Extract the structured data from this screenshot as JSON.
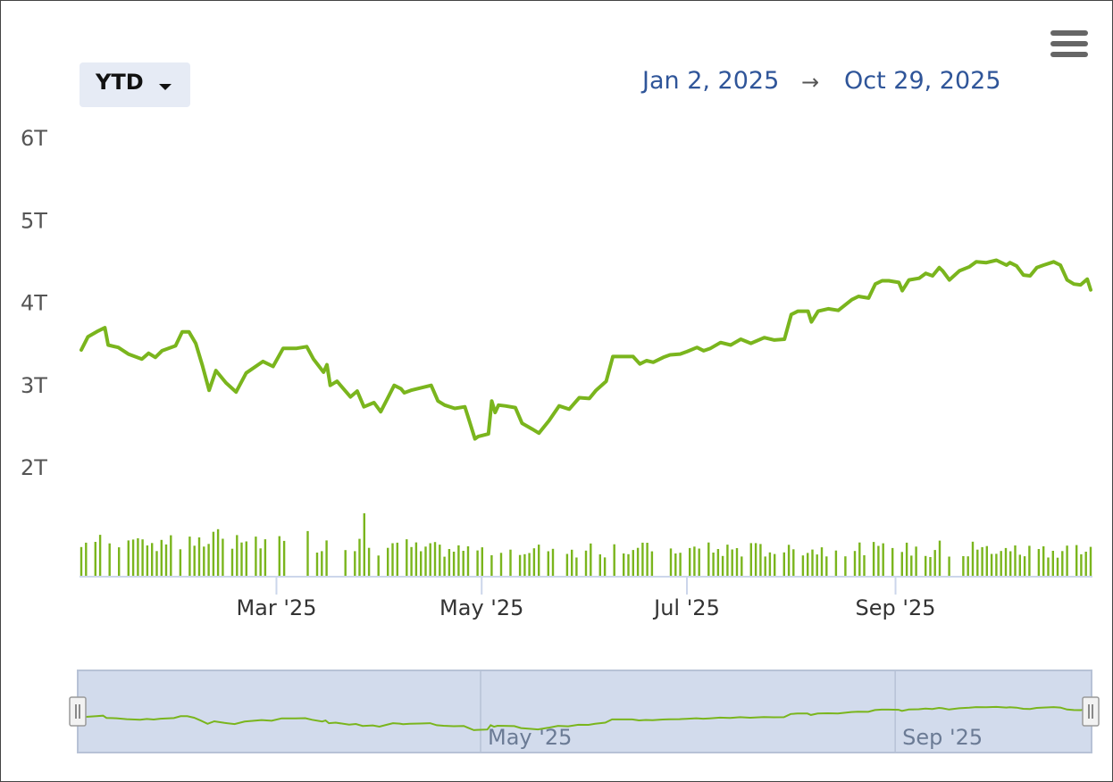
{
  "toolbar": {
    "range_label": "YTD",
    "date_from": "Jan 2, 2025",
    "date_arrow": "→",
    "date_to": "Oct 29, 2025"
  },
  "colors": {
    "series": "#7ab51d",
    "navigator_fill": "#d2dbec",
    "axis": "#ccd6eb",
    "date_text": "#2f5599"
  },
  "chart_data": {
    "type": "line",
    "x_range": [
      "2025-01-02",
      "2025-10-29"
    ],
    "ylim": [
      2,
      6
    ],
    "y_ticks": [
      {
        "value": 2,
        "label": "2T"
      },
      {
        "value": 3,
        "label": "3T"
      },
      {
        "value": 4,
        "label": "4T"
      },
      {
        "value": 5,
        "label": "5T"
      },
      {
        "value": 6,
        "label": "6T"
      }
    ],
    "x_ticks": [
      {
        "date": "2025-03-01",
        "label": "Mar '25"
      },
      {
        "date": "2025-05-01",
        "label": "May '25"
      },
      {
        "date": "2025-07-01",
        "label": "Jul '25"
      },
      {
        "date": "2025-09-01",
        "label": "Sep '25"
      }
    ],
    "navigator_ticks": [
      {
        "date": "2025-05-01",
        "label": "May '25"
      },
      {
        "date": "2025-09-01",
        "label": "Sep '25"
      }
    ],
    "series": [
      {
        "points": [
          [
            "2025-01-02",
            3.42
          ],
          [
            "2025-01-04",
            3.58
          ],
          [
            "2025-01-07",
            3.65
          ],
          [
            "2025-01-09",
            3.69
          ],
          [
            "2025-01-10",
            3.48
          ],
          [
            "2025-01-13",
            3.45
          ],
          [
            "2025-01-16",
            3.37
          ],
          [
            "2025-01-20",
            3.31
          ],
          [
            "2025-01-22",
            3.38
          ],
          [
            "2025-01-24",
            3.33
          ],
          [
            "2025-01-26",
            3.41
          ],
          [
            "2025-01-30",
            3.47
          ],
          [
            "2025-02-01",
            3.64
          ],
          [
            "2025-02-03",
            3.64
          ],
          [
            "2025-02-05",
            3.5
          ],
          [
            "2025-02-07",
            3.23
          ],
          [
            "2025-02-09",
            2.93
          ],
          [
            "2025-02-11",
            3.17
          ],
          [
            "2025-02-14",
            3.02
          ],
          [
            "2025-02-17",
            2.91
          ],
          [
            "2025-02-20",
            3.14
          ],
          [
            "2025-02-25",
            3.28
          ],
          [
            "2025-02-28",
            3.22
          ],
          [
            "2025-03-03",
            3.44
          ],
          [
            "2025-03-07",
            3.44
          ],
          [
            "2025-03-10",
            3.46
          ],
          [
            "2025-03-12",
            3.31
          ],
          [
            "2025-03-15",
            3.15
          ],
          [
            "2025-03-16",
            3.24
          ],
          [
            "2025-03-17",
            2.99
          ],
          [
            "2025-03-19",
            3.04
          ],
          [
            "2025-03-23",
            2.85
          ],
          [
            "2025-03-25",
            2.92
          ],
          [
            "2025-03-27",
            2.73
          ],
          [
            "2025-03-30",
            2.78
          ],
          [
            "2025-04-01",
            2.67
          ],
          [
            "2025-04-03",
            2.83
          ],
          [
            "2025-04-05",
            2.99
          ],
          [
            "2025-04-07",
            2.95
          ],
          [
            "2025-04-08",
            2.9
          ],
          [
            "2025-04-10",
            2.93
          ],
          [
            "2025-04-13",
            2.96
          ],
          [
            "2025-04-16",
            2.99
          ],
          [
            "2025-04-18",
            2.8
          ],
          [
            "2025-04-20",
            2.75
          ],
          [
            "2025-04-23",
            2.71
          ],
          [
            "2025-04-26",
            2.73
          ],
          [
            "2025-04-27",
            2.6
          ],
          [
            "2025-04-29",
            2.34
          ],
          [
            "2025-04-30",
            2.37
          ],
          [
            "2025-05-03",
            2.4
          ],
          [
            "2025-05-04",
            2.8
          ],
          [
            "2025-05-05",
            2.66
          ],
          [
            "2025-05-06",
            2.75
          ],
          [
            "2025-05-08",
            2.74
          ],
          [
            "2025-05-11",
            2.72
          ],
          [
            "2025-05-13",
            2.53
          ],
          [
            "2025-05-16",
            2.46
          ],
          [
            "2025-05-18",
            2.41
          ],
          [
            "2025-05-21",
            2.56
          ],
          [
            "2025-05-24",
            2.74
          ],
          [
            "2025-05-27",
            2.7
          ],
          [
            "2025-05-30",
            2.84
          ],
          [
            "2025-06-02",
            2.83
          ],
          [
            "2025-06-04",
            2.93
          ],
          [
            "2025-06-07",
            3.04
          ],
          [
            "2025-06-09",
            3.34
          ],
          [
            "2025-06-12",
            3.34
          ],
          [
            "2025-06-15",
            3.34
          ],
          [
            "2025-06-17",
            3.25
          ],
          [
            "2025-06-19",
            3.29
          ],
          [
            "2025-06-21",
            3.27
          ],
          [
            "2025-06-24",
            3.33
          ],
          [
            "2025-06-26",
            3.36
          ],
          [
            "2025-06-29",
            3.37
          ],
          [
            "2025-07-01",
            3.4
          ],
          [
            "2025-07-04",
            3.45
          ],
          [
            "2025-07-06",
            3.41
          ],
          [
            "2025-07-08",
            3.44
          ],
          [
            "2025-07-11",
            3.51
          ],
          [
            "2025-07-14",
            3.48
          ],
          [
            "2025-07-17",
            3.55
          ],
          [
            "2025-07-20",
            3.5
          ],
          [
            "2025-07-24",
            3.57
          ],
          [
            "2025-07-27",
            3.54
          ],
          [
            "2025-07-30",
            3.55
          ],
          [
            "2025-08-01",
            3.85
          ],
          [
            "2025-08-03",
            3.89
          ],
          [
            "2025-08-06",
            3.89
          ],
          [
            "2025-08-07",
            3.76
          ],
          [
            "2025-08-09",
            3.89
          ],
          [
            "2025-08-12",
            3.92
          ],
          [
            "2025-08-15",
            3.9
          ],
          [
            "2025-08-19",
            4.03
          ],
          [
            "2025-08-21",
            4.07
          ],
          [
            "2025-08-24",
            4.05
          ],
          [
            "2025-08-26",
            4.22
          ],
          [
            "2025-08-28",
            4.26
          ],
          [
            "2025-08-30",
            4.26
          ],
          [
            "2025-09-02",
            4.24
          ],
          [
            "2025-09-03",
            4.14
          ],
          [
            "2025-09-05",
            4.27
          ],
          [
            "2025-09-08",
            4.29
          ],
          [
            "2025-09-10",
            4.35
          ],
          [
            "2025-09-12",
            4.32
          ],
          [
            "2025-09-14",
            4.42
          ],
          [
            "2025-09-15",
            4.38
          ],
          [
            "2025-09-17",
            4.27
          ],
          [
            "2025-09-20",
            4.38
          ],
          [
            "2025-09-23",
            4.43
          ],
          [
            "2025-09-25",
            4.49
          ],
          [
            "2025-09-28",
            4.48
          ],
          [
            "2025-10-01",
            4.51
          ],
          [
            "2025-10-04",
            4.45
          ],
          [
            "2025-10-05",
            4.48
          ],
          [
            "2025-10-07",
            4.44
          ],
          [
            "2025-10-09",
            4.33
          ],
          [
            "2025-10-11",
            4.32
          ],
          [
            "2025-10-13",
            4.42
          ],
          [
            "2025-10-15",
            4.45
          ],
          [
            "2025-10-18",
            4.49
          ],
          [
            "2025-10-20",
            4.45
          ],
          [
            "2025-10-22",
            4.27
          ],
          [
            "2025-10-24",
            4.22
          ],
          [
            "2025-10-26",
            4.21
          ],
          [
            "2025-10-28",
            4.28
          ],
          [
            "2025-10-29",
            4.15
          ]
        ]
      }
    ]
  }
}
